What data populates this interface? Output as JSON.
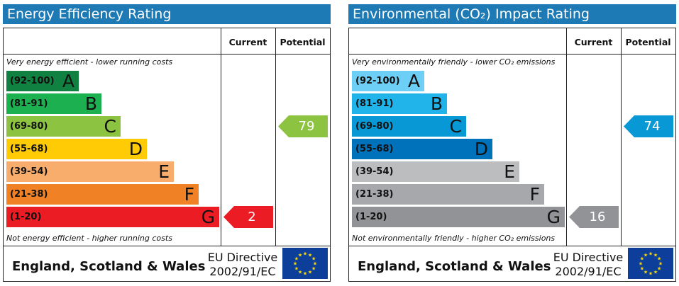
{
  "chart_data": [
    {
      "type": "bar",
      "title": "Energy Efficiency Rating",
      "columns": [
        "Current",
        "Potential"
      ],
      "top_note": "Very energy efficient - lower running costs",
      "bottom_note": "Not energy efficient - higher running costs",
      "bands": [
        {
          "range": "(92-100)",
          "letter": "A",
          "color": "#118141"
        },
        {
          "range": "(81-91)",
          "letter": "B",
          "color": "#1cb050"
        },
        {
          "range": "(69-80)",
          "letter": "C",
          "color": "#8cc341"
        },
        {
          "range": "(55-68)",
          "letter": "D",
          "color": "#ffcb04"
        },
        {
          "range": "(39-54)",
          "letter": "E",
          "color": "#f8ad6c"
        },
        {
          "range": "(21-38)",
          "letter": "F",
          "color": "#f18125"
        },
        {
          "range": "(1-20)",
          "letter": "G",
          "color": "#ec1c24"
        }
      ],
      "current": {
        "value": 2,
        "band": "G",
        "color": "#ec1c24"
      },
      "potential": {
        "value": 79,
        "band": "C",
        "color": "#8cc341"
      },
      "footer_country": "England, Scotland & Wales",
      "footer_directive_line1": "EU Directive",
      "footer_directive_line2": "2002/91/EC"
    },
    {
      "type": "bar",
      "title": "Environmental (CO₂) Impact Rating",
      "columns": [
        "Current",
        "Potential"
      ],
      "top_note": "Very environmentally friendly - lower CO₂ emissions",
      "bottom_note": "Not environmentally friendly - higher CO₂ emissions",
      "bands": [
        {
          "range": "(92-100)",
          "letter": "A",
          "color": "#6dcff6"
        },
        {
          "range": "(81-91)",
          "letter": "B",
          "color": "#20b4ea"
        },
        {
          "range": "(69-80)",
          "letter": "C",
          "color": "#0898d6"
        },
        {
          "range": "(55-68)",
          "letter": "D",
          "color": "#0071bb"
        },
        {
          "range": "(39-54)",
          "letter": "E",
          "color": "#bbbdbf"
        },
        {
          "range": "(21-38)",
          "letter": "F",
          "color": "#a6a8ab"
        },
        {
          "range": "(1-20)",
          "letter": "G",
          "color": "#919396"
        }
      ],
      "current": {
        "value": 16,
        "band": "G",
        "color": "#919396"
      },
      "potential": {
        "value": 74,
        "band": "C",
        "color": "#0898d6"
      },
      "footer_country": "England, Scotland & Wales",
      "footer_directive_line1": "EU Directive",
      "footer_directive_line2": "2002/91/EC"
    }
  ]
}
